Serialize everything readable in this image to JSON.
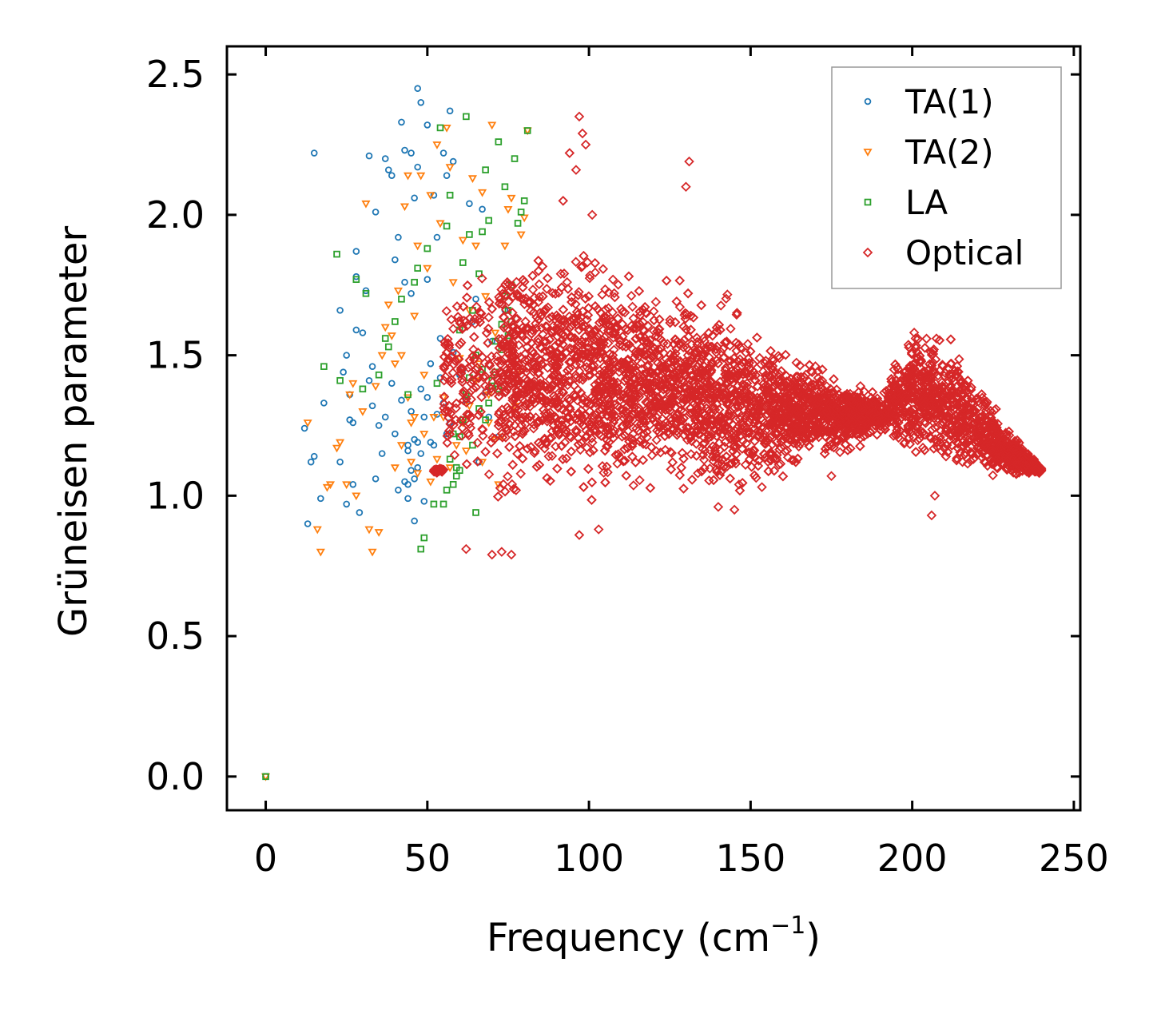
{
  "chart_data": {
    "type": "scatter",
    "title": "",
    "xlabel": "Frequency (cm",
    "xlabel_sup": "−1",
    "xlabel_close": ")",
    "ylabel": "Grüneisen parameter",
    "xlim": [
      -12,
      252
    ],
    "ylim": [
      -0.12,
      2.6
    ],
    "xticks": [
      0,
      50,
      100,
      150,
      200,
      250
    ],
    "yticks": [
      0.0,
      0.5,
      1.0,
      1.5,
      2.0,
      2.5
    ],
    "xtick_labels": [
      "0",
      "50",
      "100",
      "150",
      "200",
      "250"
    ],
    "ytick_labels": [
      "0.0",
      "0.5",
      "1.0",
      "1.5",
      "2.0",
      "2.5"
    ],
    "legend_position": "top-right",
    "series": [
      {
        "name": "TA(1)",
        "marker": "circle",
        "color": "#1f77b4",
        "points": [
          [
            0,
            0.0
          ],
          [
            12,
            1.24
          ],
          [
            13,
            0.9
          ],
          [
            14,
            1.12
          ],
          [
            15,
            1.14
          ],
          [
            15,
            2.22
          ],
          [
            17,
            0.99
          ],
          [
            18,
            1.33
          ],
          [
            23,
            1.12
          ],
          [
            23,
            1.66
          ],
          [
            24,
            1.44
          ],
          [
            25,
            1.5
          ],
          [
            25,
            0.97
          ],
          [
            26,
            1.36
          ],
          [
            26,
            1.27
          ],
          [
            27,
            1.04
          ],
          [
            27,
            1.26
          ],
          [
            28,
            1.59
          ],
          [
            28,
            1.78
          ],
          [
            28,
            1.87
          ],
          [
            29,
            0.94
          ],
          [
            30,
            1.58
          ],
          [
            31,
            1.73
          ],
          [
            32,
            2.21
          ],
          [
            32,
            1.41
          ],
          [
            33,
            1.46
          ],
          [
            33,
            1.32
          ],
          [
            34,
            1.06
          ],
          [
            34,
            2.01
          ],
          [
            35,
            1.25
          ],
          [
            36,
            1.15
          ],
          [
            37,
            2.2
          ],
          [
            37,
            1.28
          ],
          [
            38,
            2.16
          ],
          [
            39,
            1.4
          ],
          [
            39,
            2.14
          ],
          [
            40,
            1.22
          ],
          [
            40,
            1.84
          ],
          [
            41,
            1.92
          ],
          [
            41,
            1.02
          ],
          [
            42,
            1.34
          ],
          [
            42,
            2.33
          ],
          [
            43,
            1.76
          ],
          [
            43,
            2.23
          ],
          [
            44,
            1.04
          ],
          [
            44,
            1.16
          ],
          [
            45,
            1.72
          ],
          [
            45,
            2.22
          ],
          [
            46,
            0.91
          ],
          [
            46,
            2.06
          ],
          [
            47,
            1.19
          ],
          [
            47,
            2.17
          ],
          [
            47,
            2.45
          ],
          [
            48,
            2.4
          ],
          [
            48,
            1.38
          ],
          [
            49,
            1.28
          ],
          [
            50,
            1.77
          ],
          [
            50,
            2.32
          ],
          [
            51,
            1.47
          ],
          [
            52,
            1.18
          ],
          [
            52,
            2.07
          ],
          [
            53,
            1.92
          ],
          [
            54,
            1.56
          ],
          [
            55,
            2.22
          ],
          [
            55,
            1.33
          ],
          [
            56,
            2.14
          ],
          [
            57,
            1.26
          ],
          [
            57,
            2.37
          ],
          [
            58,
            2.19
          ],
          [
            60,
            1.43
          ],
          [
            62,
            1.34
          ],
          [
            63,
            2.04
          ],
          [
            65,
            1.7
          ],
          [
            66,
            1.12
          ],
          [
            67,
            2.02
          ],
          [
            68,
            1.37
          ],
          [
            69,
            1.28
          ],
          [
            70,
            1.55
          ],
          [
            72,
            1.21
          ],
          [
            74,
            1.66
          ],
          [
            44,
            1.18
          ],
          [
            45,
            1.09
          ],
          [
            46,
            1.2
          ],
          [
            47,
            1.1
          ],
          [
            48,
            1.15
          ],
          [
            49,
            0.98
          ],
          [
            50,
            1.35
          ],
          [
            51,
            1.19
          ],
          [
            53,
            1.29
          ],
          [
            54,
            1.42
          ],
          [
            56,
            1.22
          ],
          [
            58,
            1.51
          ],
          [
            61,
            1.45
          ],
          [
            64,
            1.62
          ],
          [
            43,
            1.05
          ],
          [
            44,
            0.99
          ],
          [
            45,
            1.3
          ],
          [
            46,
            1.06
          ]
        ]
      },
      {
        "name": "TA(2)",
        "marker": "triangle-down",
        "color": "#ff7f0e",
        "points": [
          [
            0,
            0.0
          ],
          [
            13,
            1.26
          ],
          [
            16,
            0.88
          ],
          [
            17,
            0.8
          ],
          [
            19,
            1.03
          ],
          [
            20,
            1.04
          ],
          [
            22,
            1.17
          ],
          [
            23,
            1.19
          ],
          [
            25,
            1.04
          ],
          [
            26,
            1.36
          ],
          [
            27,
            1.4
          ],
          [
            28,
            1.0
          ],
          [
            30,
            1.3
          ],
          [
            31,
            2.04
          ],
          [
            32,
            0.88
          ],
          [
            33,
            0.8
          ],
          [
            34,
            1.39
          ],
          [
            35,
            0.87
          ],
          [
            36,
            1.5
          ],
          [
            37,
            1.6
          ],
          [
            38,
            1.68
          ],
          [
            39,
            1.57
          ],
          [
            40,
            1.47
          ],
          [
            41,
            1.73
          ],
          [
            42,
            1.18
          ],
          [
            43,
            2.03
          ],
          [
            44,
            2.14
          ],
          [
            45,
            1.26
          ],
          [
            46,
            1.64
          ],
          [
            47,
            1.89
          ],
          [
            48,
            2.14
          ],
          [
            49,
            1.43
          ],
          [
            50,
            1.81
          ],
          [
            51,
            2.07
          ],
          [
            52,
            1.28
          ],
          [
            53,
            2.25
          ],
          [
            54,
            1.97
          ],
          [
            55,
            1.35
          ],
          [
            56,
            2.31
          ],
          [
            57,
            2.17
          ],
          [
            58,
            1.76
          ],
          [
            60,
            1.49
          ],
          [
            61,
            1.91
          ],
          [
            62,
            1.16
          ],
          [
            63,
            1.66
          ],
          [
            64,
            2.13
          ],
          [
            65,
            1.89
          ],
          [
            66,
            1.47
          ],
          [
            67,
            2.08
          ],
          [
            68,
            1.71
          ],
          [
            69,
            1.26
          ],
          [
            70,
            2.32
          ],
          [
            71,
            1.58
          ],
          [
            72,
            1.04
          ],
          [
            73,
            1.21
          ],
          [
            74,
            1.89
          ],
          [
            75,
            2.02
          ],
          [
            76,
            2.06
          ],
          [
            77,
            1.32
          ],
          [
            78,
            1.44
          ],
          [
            79,
            1.93
          ],
          [
            80,
            1.99
          ],
          [
            81,
            2.3
          ],
          [
            45,
            1.12
          ],
          [
            47,
            1.08
          ],
          [
            49,
            1.22
          ],
          [
            51,
            1.05
          ],
          [
            53,
            1.13
          ],
          [
            55,
            1.28
          ],
          [
            57,
            1.1
          ],
          [
            59,
            1.18
          ],
          [
            61,
            1.26
          ],
          [
            63,
            1.32
          ],
          [
            65,
            1.41
          ],
          [
            67,
            1.12
          ],
          [
            69,
            1.36
          ],
          [
            71,
            1.2
          ],
          [
            40,
            1.1
          ],
          [
            42,
            1.5
          ],
          [
            44,
            1.35
          ],
          [
            46,
            1.28
          ]
        ]
      },
      {
        "name": "LA",
        "marker": "square",
        "color": "#2ca02c",
        "points": [
          [
            0,
            0.0
          ],
          [
            18,
            1.46
          ],
          [
            22,
            1.86
          ],
          [
            23,
            1.41
          ],
          [
            28,
            1.77
          ],
          [
            30,
            1.38
          ],
          [
            31,
            1.72
          ],
          [
            35,
            1.43
          ],
          [
            37,
            1.56
          ],
          [
            38,
            1.53
          ],
          [
            40,
            1.62
          ],
          [
            42,
            1.7
          ],
          [
            44,
            1.36
          ],
          [
            46,
            1.76
          ],
          [
            47,
            1.81
          ],
          [
            48,
            0.81
          ],
          [
            49,
            0.85
          ],
          [
            50,
            1.88
          ],
          [
            52,
            0.97
          ],
          [
            53,
            1.4
          ],
          [
            54,
            2.31
          ],
          [
            55,
            0.97
          ],
          [
            56,
            1.96
          ],
          [
            57,
            2.07
          ],
          [
            58,
            1.22
          ],
          [
            59,
            1.1
          ],
          [
            60,
            1.59
          ],
          [
            61,
            1.83
          ],
          [
            62,
            2.35
          ],
          [
            63,
            1.93
          ],
          [
            64,
            1.66
          ],
          [
            65,
            0.94
          ],
          [
            66,
            1.79
          ],
          [
            67,
            1.94
          ],
          [
            68,
            2.16
          ],
          [
            69,
            1.98
          ],
          [
            70,
            1.41
          ],
          [
            71,
            1.55
          ],
          [
            72,
            2.26
          ],
          [
            73,
            1.52
          ],
          [
            74,
            2.1
          ],
          [
            75,
            1.57
          ],
          [
            76,
            1.75
          ],
          [
            77,
            2.2
          ],
          [
            78,
            1.97
          ],
          [
            79,
            2.01
          ],
          [
            80,
            2.05
          ],
          [
            81,
            2.3
          ],
          [
            60,
            1.21
          ],
          [
            61,
            1.27
          ],
          [
            62,
            1.36
          ],
          [
            63,
            1.42
          ],
          [
            64,
            1.18
          ],
          [
            65,
            1.5
          ],
          [
            66,
            1.31
          ],
          [
            67,
            1.45
          ],
          [
            68,
            1.27
          ],
          [
            69,
            1.33
          ],
          [
            70,
            1.39
          ],
          [
            71,
            1.44
          ],
          [
            72,
            1.38
          ],
          [
            73,
            1.61
          ],
          [
            74,
            1.71
          ],
          [
            75,
            1.66
          ],
          [
            76,
            1.62
          ],
          [
            58,
            1.04
          ],
          [
            59,
            1.07
          ],
          [
            60,
            1.09
          ],
          [
            57,
            1.13
          ],
          [
            56,
            1.02
          ]
        ]
      },
      {
        "name": "Optical",
        "marker": "diamond",
        "color": "#d62728",
        "generated": {
          "description": "dense cloud of optical-branch modes",
          "x_range": [
            52,
            240
          ],
          "envelope": [
            [
              55,
              1.05,
              1.82
            ],
            [
              65,
              1.0,
              1.9
            ],
            [
              75,
              0.85,
              1.95
            ],
            [
              85,
              0.95,
              1.9
            ],
            [
              95,
              0.9,
              2.0
            ],
            [
              100,
              0.88,
              1.95
            ],
            [
              110,
              0.95,
              1.85
            ],
            [
              120,
              1.0,
              1.8
            ],
            [
              130,
              0.98,
              1.82
            ],
            [
              140,
              0.95,
              1.75
            ],
            [
              150,
              0.95,
              1.68
            ],
            [
              160,
              1.05,
              1.55
            ],
            [
              170,
              1.1,
              1.5
            ],
            [
              180,
              1.15,
              1.42
            ],
            [
              190,
              1.2,
              1.38
            ],
            [
              200,
              1.1,
              1.65
            ],
            [
              210,
              1.05,
              1.6
            ],
            [
              220,
              1.05,
              1.45
            ],
            [
              230,
              1.05,
              1.25
            ],
            [
              240,
              1.08,
              1.1
            ]
          ],
          "outliers": [
            [
              97,
              2.35
            ],
            [
              98,
              2.29
            ],
            [
              94,
              2.22
            ],
            [
              96,
              2.16
            ],
            [
              131,
              2.19
            ],
            [
              130,
              2.1
            ],
            [
              99,
              2.25
            ],
            [
              101,
              2.0
            ],
            [
              92,
              2.05
            ],
            [
              70,
              0.79
            ],
            [
              73,
              0.8
            ],
            [
              76,
              0.79
            ],
            [
              62,
              0.81
            ],
            [
              97,
              0.86
            ],
            [
              103,
              0.88
            ],
            [
              140,
              0.96
            ],
            [
              145,
              0.95
            ],
            [
              175,
              1.07
            ],
            [
              206,
              0.93
            ],
            [
              207,
              1.0
            ],
            [
              232,
              1.08
            ]
          ]
        }
      }
    ]
  }
}
